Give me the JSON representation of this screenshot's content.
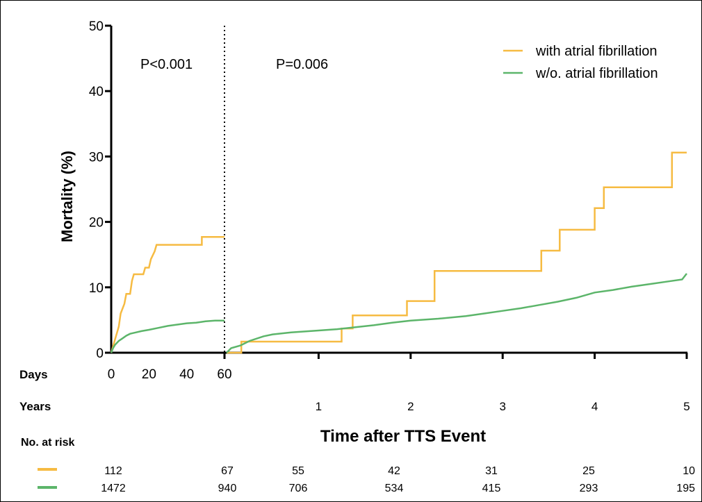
{
  "chart_data": {
    "type": "line",
    "ylabel": "Mortality (%)",
    "xlabel": "Time after TTS Event",
    "ylim": [
      0,
      50
    ],
    "y_ticks": [
      0,
      10,
      20,
      30,
      40,
      50
    ],
    "days_axis": {
      "label": "Days",
      "ticks": [
        0,
        20,
        40,
        60
      ],
      "range": [
        0,
        60
      ]
    },
    "years_axis": {
      "label": "Years",
      "ticks": [
        1,
        2,
        3,
        4,
        5
      ],
      "range": [
        0,
        5
      ]
    },
    "annotations": {
      "left_p": "P<0.001",
      "right_p": "P=0.006"
    },
    "colors": {
      "af": "#F6BB42",
      "no_af": "#5CB56A"
    },
    "series": [
      {
        "name": "with atrial fibrillation",
        "color": "#F6BB42",
        "days_points": [
          [
            0,
            0
          ],
          [
            1,
            1
          ],
          [
            2,
            2
          ],
          [
            3,
            3
          ],
          [
            4,
            4
          ],
          [
            5,
            6
          ],
          [
            7,
            7.5
          ],
          [
            8,
            9
          ],
          [
            10,
            9
          ],
          [
            11,
            11
          ],
          [
            12,
            12
          ],
          [
            17,
            12
          ],
          [
            18,
            13
          ],
          [
            20,
            13
          ],
          [
            21,
            14.3
          ],
          [
            23,
            15.5
          ],
          [
            24,
            16.5
          ],
          [
            48,
            16.5
          ],
          [
            48,
            17.7
          ],
          [
            60,
            17.7
          ]
        ],
        "years_points": [
          [
            0,
            0
          ],
          [
            0.16,
            0
          ],
          [
            0.16,
            1.7
          ],
          [
            1.25,
            1.7
          ],
          [
            1.25,
            3.7
          ],
          [
            1.37,
            3.7
          ],
          [
            1.37,
            5.7
          ],
          [
            1.96,
            5.7
          ],
          [
            1.96,
            7.9
          ],
          [
            2.26,
            7.9
          ],
          [
            2.26,
            12.5
          ],
          [
            3.42,
            12.5
          ],
          [
            3.42,
            15.6
          ],
          [
            3.62,
            15.6
          ],
          [
            3.62,
            18.8
          ],
          [
            4.0,
            18.8
          ],
          [
            4.0,
            22.1
          ],
          [
            4.1,
            22.1
          ],
          [
            4.1,
            25.3
          ],
          [
            4.84,
            25.3
          ],
          [
            4.84,
            30.6
          ],
          [
            5.0,
            30.6
          ]
        ]
      },
      {
        "name": "w/o. atrial fibrillation",
        "color": "#5CB56A",
        "days_points": [
          [
            0,
            0
          ],
          [
            1,
            0.7
          ],
          [
            2,
            1.2
          ],
          [
            4,
            1.8
          ],
          [
            6,
            2.2
          ],
          [
            8,
            2.6
          ],
          [
            10,
            2.9
          ],
          [
            13,
            3.1
          ],
          [
            16,
            3.3
          ],
          [
            20,
            3.5
          ],
          [
            25,
            3.8
          ],
          [
            30,
            4.1
          ],
          [
            35,
            4.3
          ],
          [
            40,
            4.5
          ],
          [
            45,
            4.6
          ],
          [
            50,
            4.8
          ],
          [
            55,
            4.9
          ],
          [
            60,
            4.9
          ]
        ],
        "years_points": [
          [
            0,
            0
          ],
          [
            0.05,
            0.7
          ],
          [
            0.15,
            1.1
          ],
          [
            0.25,
            1.8
          ],
          [
            0.4,
            2.5
          ],
          [
            0.5,
            2.8
          ],
          [
            0.7,
            3.1
          ],
          [
            1.0,
            3.4
          ],
          [
            1.2,
            3.6
          ],
          [
            1.4,
            3.9
          ],
          [
            1.6,
            4.2
          ],
          [
            1.8,
            4.6
          ],
          [
            2.0,
            4.9
          ],
          [
            2.3,
            5.2
          ],
          [
            2.6,
            5.6
          ],
          [
            2.8,
            6.0
          ],
          [
            3.0,
            6.4
          ],
          [
            3.2,
            6.8
          ],
          [
            3.4,
            7.3
          ],
          [
            3.6,
            7.8
          ],
          [
            3.8,
            8.4
          ],
          [
            4.0,
            9.2
          ],
          [
            4.2,
            9.6
          ],
          [
            4.4,
            10.1
          ],
          [
            4.6,
            10.5
          ],
          [
            4.8,
            10.9
          ],
          [
            4.95,
            11.2
          ],
          [
            5.0,
            12.1
          ]
        ]
      }
    ]
  },
  "risk_table": {
    "title": "No. at risk",
    "rows": [
      {
        "color": "#F6BB42",
        "values": [
          "112",
          "67",
          "55",
          "42",
          "31",
          "25",
          "10"
        ]
      },
      {
        "color": "#5CB56A",
        "values": [
          "1472",
          "940",
          "706",
          "534",
          "415",
          "293",
          "195"
        ]
      }
    ]
  }
}
